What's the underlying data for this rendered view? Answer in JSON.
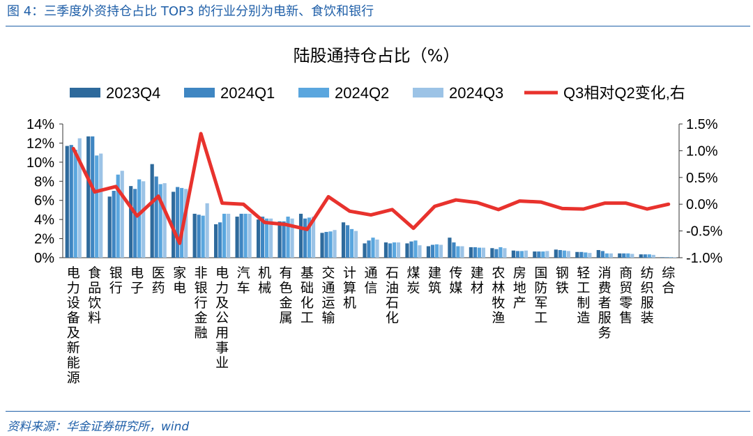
{
  "caption": "图 4：三季度外资持仓占比 TOP3 的行业分别为电新、食饮和银行",
  "source": "资料来源：华金证券研究所，wind",
  "colors": {
    "s2023Q4": "#2e6a9c",
    "s2024Q1": "#3f86c2",
    "s2024Q2": "#5aa6de",
    "s2024Q3": "#9cc3e6",
    "line": "#e8322d",
    "frame": "#1f5fa8"
  },
  "chart_data": {
    "type": "bar",
    "title": "陆股通持仓占比（%）",
    "categories": [
      "电力设备及新能源",
      "食品饮料",
      "银行",
      "电子",
      "医药",
      "家电",
      "非银行金融",
      "电力及公用事业",
      "汽车",
      "机械",
      "有色金属",
      "基础化工",
      "交通运输",
      "计算机",
      "通信",
      "石油石化",
      "煤炭",
      "建筑",
      "传媒",
      "建材",
      "农林牧渔",
      "房地产",
      "国防军工",
      "钢铁",
      "轻工制造",
      "消费者服务",
      "商贸零售",
      "纺织服装",
      "综合"
    ],
    "series": [
      {
        "name": "2023Q4",
        "values": [
          11.7,
          12.7,
          6.4,
          7.5,
          9.8,
          6.9,
          4.6,
          3.5,
          4.3,
          4.0,
          3.8,
          4.6,
          2.6,
          3.7,
          1.5,
          1.6,
          1.5,
          1.2,
          2.1,
          1.1,
          1.0,
          0.75,
          0.65,
          0.85,
          0.6,
          0.8,
          0.45,
          0.35,
          0.05
        ]
      },
      {
        "name": "2024Q1",
        "values": [
          11.8,
          12.7,
          7.0,
          7.2,
          8.5,
          7.4,
          4.5,
          3.7,
          4.6,
          4.3,
          3.8,
          4.1,
          2.7,
          3.4,
          1.8,
          1.5,
          1.7,
          1.35,
          1.6,
          1.1,
          0.9,
          0.7,
          0.65,
          0.8,
          0.6,
          0.7,
          0.45,
          0.35,
          0.05
        ]
      },
      {
        "name": "2024Q2",
        "values": [
          11.3,
          10.7,
          8.7,
          8.2,
          7.7,
          7.3,
          4.4,
          4.6,
          4.6,
          4.1,
          4.3,
          4.2,
          2.75,
          3.0,
          2.1,
          1.6,
          1.8,
          1.4,
          1.2,
          1.05,
          1.1,
          0.7,
          0.65,
          0.75,
          0.55,
          0.45,
          0.45,
          0.35,
          0.05
        ]
      },
      {
        "name": "2024Q3",
        "values": [
          12.5,
          10.9,
          9.1,
          8.0,
          7.8,
          7.2,
          5.7,
          4.6,
          4.6,
          4.1,
          4.1,
          4.3,
          2.9,
          2.8,
          1.9,
          1.6,
          1.3,
          1.35,
          1.2,
          1.05,
          1.0,
          0.75,
          0.7,
          0.7,
          0.5,
          0.45,
          0.4,
          0.3,
          0.05
        ]
      }
    ],
    "line_series": {
      "name": "Q3相对Q2变化,右",
      "values": [
        1.04,
        0.23,
        0.33,
        -0.22,
        0.15,
        -0.73,
        1.32,
        0.02,
        0.0,
        -0.34,
        -0.38,
        -0.47,
        0.14,
        -0.13,
        -0.2,
        -0.1,
        -0.45,
        -0.04,
        0.08,
        0.03,
        -0.1,
        0.06,
        0.04,
        -0.08,
        -0.09,
        0.02,
        0.02,
        -0.09,
        0.0
      ]
    },
    "ylim_left": [
      0,
      14
    ],
    "yticks_left": [
      "0%",
      "2%",
      "4%",
      "6%",
      "8%",
      "10%",
      "12%",
      "14%"
    ],
    "ylim_right": [
      -1.0,
      1.5
    ],
    "yticks_right": [
      "-1.0%",
      "-0.5%",
      "0.0%",
      "0.5%",
      "1.0%",
      "1.5%"
    ],
    "legend_position": "top",
    "grid": false
  }
}
